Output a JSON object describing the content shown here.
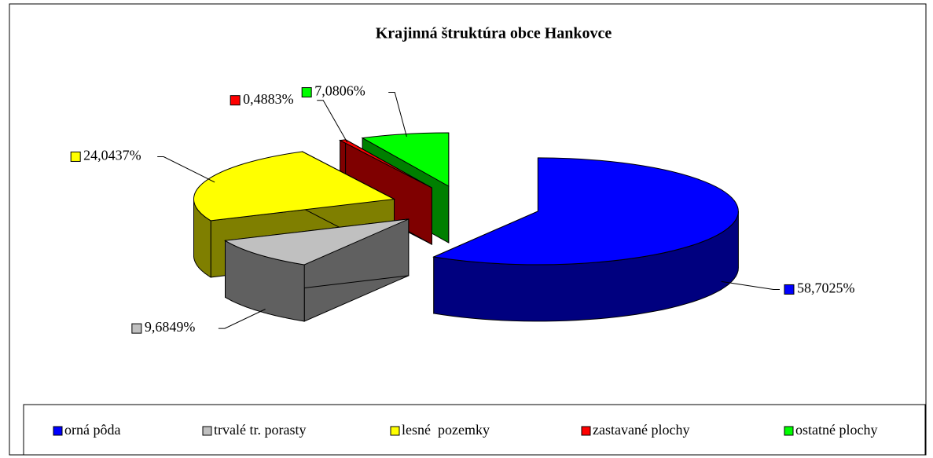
{
  "chart_data": {
    "type": "pie3d",
    "title": "Krajinná štruktúra obce Hankovce",
    "categories": [
      "orná pôda",
      "trvalé tr. porasty",
      "lesné  pozemky",
      "zastavané plochy",
      "ostatné plochy"
    ],
    "values": [
      58.7025,
      9.6849,
      24.0437,
      0.4883,
      7.0806
    ],
    "value_labels": [
      "58,7025%",
      "9,6849%",
      "24,0437%",
      "0,4883%",
      "7,0806%"
    ],
    "colors": [
      "#0000ff",
      "#c0c0c0",
      "#ffff00",
      "#ff0000",
      "#00ff00"
    ],
    "legend": "bottom"
  }
}
